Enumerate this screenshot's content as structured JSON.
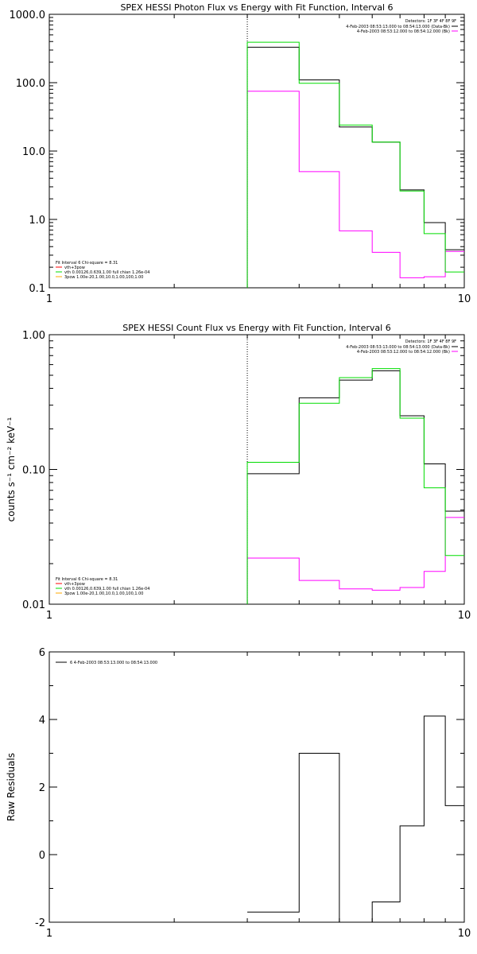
{
  "chart_data": [
    {
      "type": "line",
      "title": "SPEX HESSI Photon Flux vs Energy with Fit Function, Interval 6",
      "xscale": "log",
      "yscale": "log",
      "xlim": [
        1,
        10
      ],
      "ylim": [
        0.1,
        1000
      ],
      "x_ticks": [
        {
          "value": 1,
          "label": "1"
        },
        {
          "value": 10,
          "label": "10"
        }
      ],
      "y_ticks": [
        {
          "value": 0.1,
          "label": "0.1"
        },
        {
          "value": 1,
          "label": "1.0"
        },
        {
          "value": 10,
          "label": "10.0"
        },
        {
          "value": 100,
          "label": "100.0"
        },
        {
          "value": 1000,
          "label": "1000.0"
        }
      ],
      "xlabel": "",
      "ylabel": "",
      "vline_x": 3.0,
      "bin_edges": [
        3.0,
        4.0,
        5.0,
        6.0,
        7.0,
        8.0,
        9.0,
        10.0
      ],
      "series": [
        {
          "name": "4-Feb-2003 08:53:13.000 to 08:54:13.000 (Data-Bk)",
          "color": "#000000",
          "values": [
            330,
            110,
            22.5,
            13.5,
            2.7,
            0.9,
            0.36
          ]
        },
        {
          "name": "4-Feb-2003 08:53:12.000 to 08:54:12.000 (Bk)",
          "color": "#ff00ff",
          "values": [
            75,
            5.0,
            0.68,
            0.33,
            0.14,
            0.145,
            0.34
          ]
        },
        {
          "name": "vth 0.00126,0.639,1.00 full chian 1.26e-04",
          "color": "#00dd00",
          "values": [
            390,
            98,
            24,
            13.5,
            2.6,
            0.62,
            0.17
          ]
        }
      ],
      "legend_top": {
        "detectors": "Detectors: 1F 3F 4F 8F 9F",
        "entries": [
          {
            "text": "4-Feb-2003 08:53:13.000 to 08:54:13.000 (Data-Bk)",
            "color": "#000000"
          },
          {
            "text": "4-Feb-2003 08:53:12.000 to 08:54:12.000 (Bk)",
            "color": "#ff00ff"
          }
        ]
      },
      "legend_bottom": {
        "header": "Fit Interval 6   Chi-square = 8.31",
        "entries": [
          {
            "text": "vth+3pow",
            "color": "#ff0000"
          },
          {
            "text": "vth 0.00126,0.639,1.00  full chian 1.26e-04",
            "color": "#00dd00"
          },
          {
            "text": "3pow 1.00e-20,1.00,10.0,1.00,100,1.00",
            "color": "#ffaa00"
          }
        ]
      }
    },
    {
      "type": "line",
      "title": "SPEX HESSI Count Flux vs Energy with Fit Function, Interval 6",
      "xscale": "log",
      "yscale": "log",
      "xlim": [
        1,
        10
      ],
      "ylim": [
        0.01,
        1.0
      ],
      "x_ticks": [
        {
          "value": 1,
          "label": "1"
        },
        {
          "value": 10,
          "label": "10"
        }
      ],
      "y_ticks": [
        {
          "value": 0.01,
          "label": "0.01"
        },
        {
          "value": 0.1,
          "label": "0.10"
        },
        {
          "value": 1.0,
          "label": "1.00"
        }
      ],
      "xlabel": "",
      "ylabel": "counts s⁻¹ cm⁻² keV⁻¹",
      "vline_x": 3.0,
      "bin_edges": [
        3.0,
        4.0,
        5.0,
        6.0,
        7.0,
        8.0,
        9.0,
        10.0
      ],
      "series": [
        {
          "name": "4-Feb-2003 08:53:13.000 to 08:54:13.000 (Data-Bk)",
          "color": "#000000",
          "values": [
            0.093,
            0.34,
            0.46,
            0.54,
            0.25,
            0.11,
            0.049
          ]
        },
        {
          "name": "4-Feb-2003 08:53:12.000 to 08:54:12.000 (Bk)",
          "color": "#ff00ff",
          "values": [
            0.022,
            0.015,
            0.013,
            0.0127,
            0.0133,
            0.0175,
            0.044
          ]
        },
        {
          "name": "vth 0.00126,0.639,1.00 full chian 1.26e-04",
          "color": "#00dd00",
          "values": [
            0.113,
            0.31,
            0.48,
            0.56,
            0.24,
            0.073,
            0.023
          ]
        }
      ],
      "legend_top": {
        "detectors": "Detectors: 1F 3F 4F 8F 9F",
        "entries": [
          {
            "text": "4-Feb-2003 08:53:13.000 to 08:54:13.000 (Data-Bk)",
            "color": "#000000"
          },
          {
            "text": "4-Feb-2003 08:53:12.000 to 08:54:12.000 (Bk)",
            "color": "#ff00ff"
          }
        ]
      },
      "legend_bottom": {
        "header": "Fit Interval 6   Chi-square = 8.31",
        "entries": [
          {
            "text": "vth+3pow",
            "color": "#ff0000"
          },
          {
            "text": "vth 0.00126,0.639,1.00  full chian 1.26e-04",
            "color": "#00dd00"
          },
          {
            "text": "3pow 1.00e-20,1.00,10.0,1.00,100,1.00",
            "color": "#ffaa00"
          }
        ]
      }
    },
    {
      "type": "line",
      "title": "",
      "xscale": "log",
      "yscale": "linear",
      "xlim": [
        1,
        10
      ],
      "ylim": [
        -2,
        6
      ],
      "x_ticks": [
        {
          "value": 1,
          "label": "1"
        },
        {
          "value": 10,
          "label": "10"
        }
      ],
      "y_ticks": [
        {
          "value": -2,
          "label": "-2"
        },
        {
          "value": 0,
          "label": "0"
        },
        {
          "value": 2,
          "label": "2"
        },
        {
          "value": 4,
          "label": "4"
        },
        {
          "value": 6,
          "label": "6"
        }
      ],
      "xlabel": "",
      "ylabel": "Raw Residuals",
      "bin_edges": [
        3.0,
        4.0,
        5.0,
        6.0,
        7.0,
        8.0,
        9.0,
        10.0
      ],
      "series": [
        {
          "name": "6  4-Feb-2003 08:53:13.000 to 08:54:13.000",
          "color": "#000000",
          "values": [
            -1.7,
            3.0,
            -2.03,
            -1.4,
            0.85,
            4.1,
            1.45
          ]
        }
      ],
      "legend_top": {
        "entries": [
          {
            "text": "6  4-Feb-2003 08:53:13.000 to 08:54:13.000",
            "color": "#000000"
          }
        ]
      }
    }
  ]
}
